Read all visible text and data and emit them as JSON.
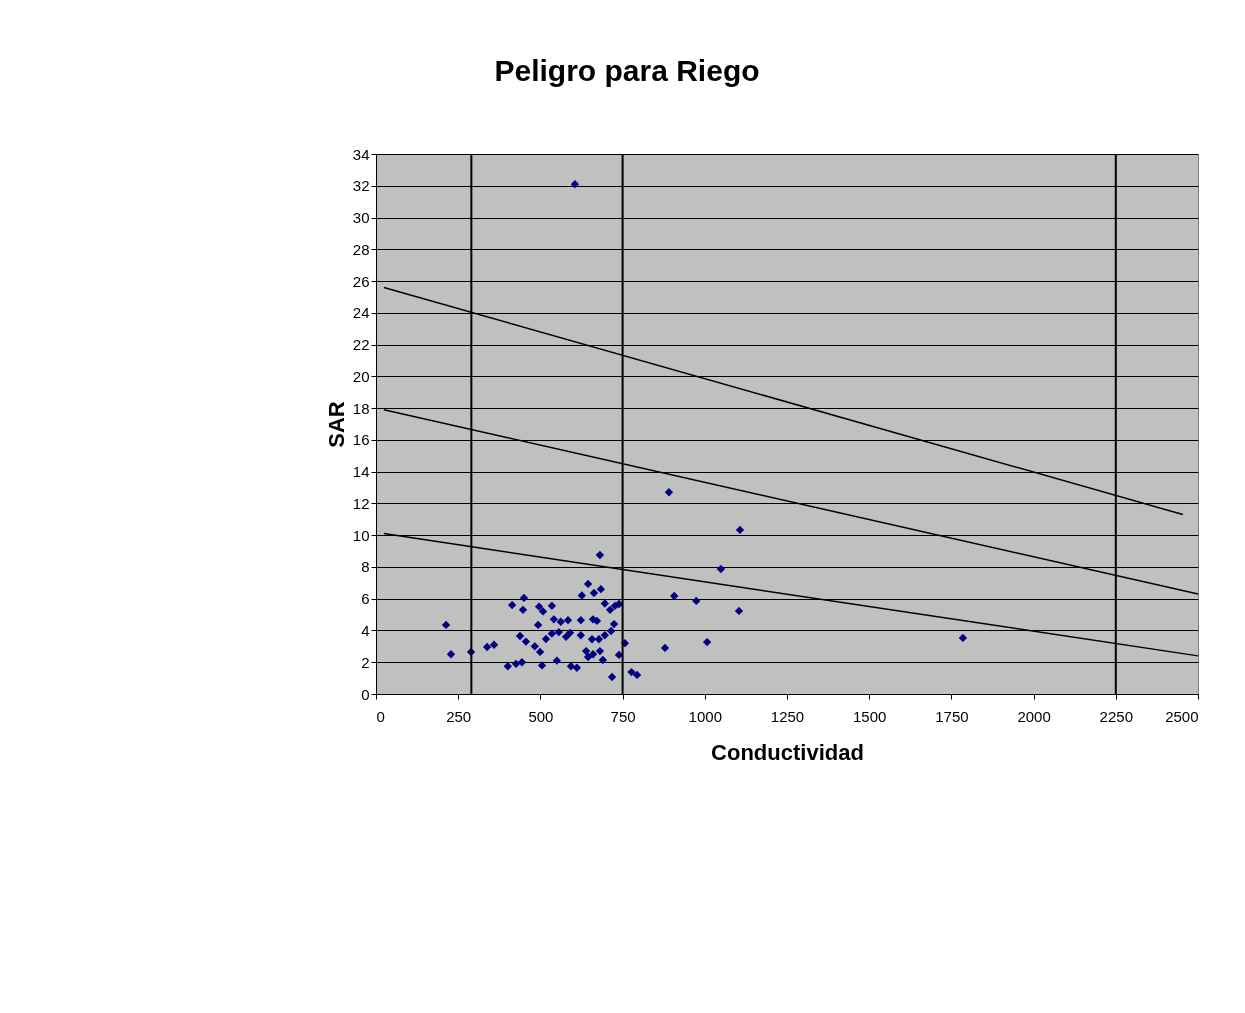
{
  "chart_data": {
    "type": "scatter",
    "title": "Peligro para Riego",
    "xlabel": "Conductividad",
    "ylabel": "SAR",
    "xlim": [
      0,
      2500
    ],
    "xticks": [
      0,
      250,
      500,
      750,
      1000,
      1250,
      1500,
      1750,
      2000,
      2250,
      2500
    ],
    "ylim": [
      0,
      34
    ],
    "yticks": [
      0,
      2,
      4,
      6,
      8,
      10,
      12,
      14,
      16,
      18,
      20,
      22,
      24,
      26,
      28,
      30,
      32,
      34
    ],
    "grid": "y",
    "series": [
      {
        "marker": "diamond",
        "color": "#000080",
        "x": [
          213,
          228,
          289,
          338,
          359,
          414,
          450,
          447,
          496,
          508,
          535,
          493,
          438,
          456,
          483,
          499,
          401,
          426,
          444,
          505,
          550,
          611,
          593,
          541,
          562,
          584,
          623,
          660,
          672,
          556,
          578,
          590,
          623,
          657,
          678,
          696,
          715,
          724,
          517,
          535,
          626,
          645,
          663,
          684,
          696,
          712,
          727,
          739,
          681,
          639,
          660,
          681,
          645,
          690,
          739,
          718,
          757,
          777,
          794,
          879,
          891,
          907,
          974,
          1007,
          1049,
          1107,
          1104,
          1785,
          605
        ],
        "values": [
          4.35,
          2.5,
          2.65,
          2.96,
          3.1,
          5.6,
          6.05,
          5.3,
          5.5,
          5.2,
          5.55,
          4.35,
          3.65,
          3.3,
          3.0,
          2.65,
          1.75,
          1.9,
          2.0,
          1.8,
          2.1,
          1.65,
          1.75,
          4.7,
          4.55,
          4.65,
          4.65,
          4.7,
          4.6,
          3.9,
          3.6,
          3.85,
          3.7,
          3.45,
          3.45,
          3.7,
          3.97,
          4.4,
          3.46,
          3.8,
          6.2,
          6.93,
          6.36,
          6.6,
          5.7,
          5.3,
          5.55,
          5.67,
          8.75,
          2.7,
          2.5,
          2.7,
          2.33,
          2.14,
          2.46,
          1.07,
          3.2,
          1.38,
          1.2,
          2.9,
          12.7,
          6.17,
          5.86,
          3.27,
          7.87,
          10.33,
          5.23,
          3.53,
          32.1
        ]
      },
      {
        "type": "line",
        "marker": "none",
        "line_style": "solid",
        "color": "#000000",
        "x": [
          24,
          2454
        ],
        "values": [
          25.6,
          11.3
        ]
      },
      {
        "type": "line",
        "marker": "none",
        "line_style": "solid",
        "color": "#000000",
        "x": [
          24,
          2500
        ],
        "values": [
          17.9,
          6.3
        ]
      },
      {
        "type": "line",
        "marker": "none",
        "line_style": "solid",
        "color": "#000000",
        "x": [
          24,
          2500
        ],
        "values": [
          10.1,
          2.4
        ]
      }
    ],
    "ref_lines": [
      {
        "axis": "x",
        "value": 290,
        "color": "#000000"
      },
      {
        "axis": "x",
        "value": 750,
        "color": "#000000"
      },
      {
        "axis": "x",
        "value": 2250,
        "color": "#000000"
      }
    ]
  }
}
